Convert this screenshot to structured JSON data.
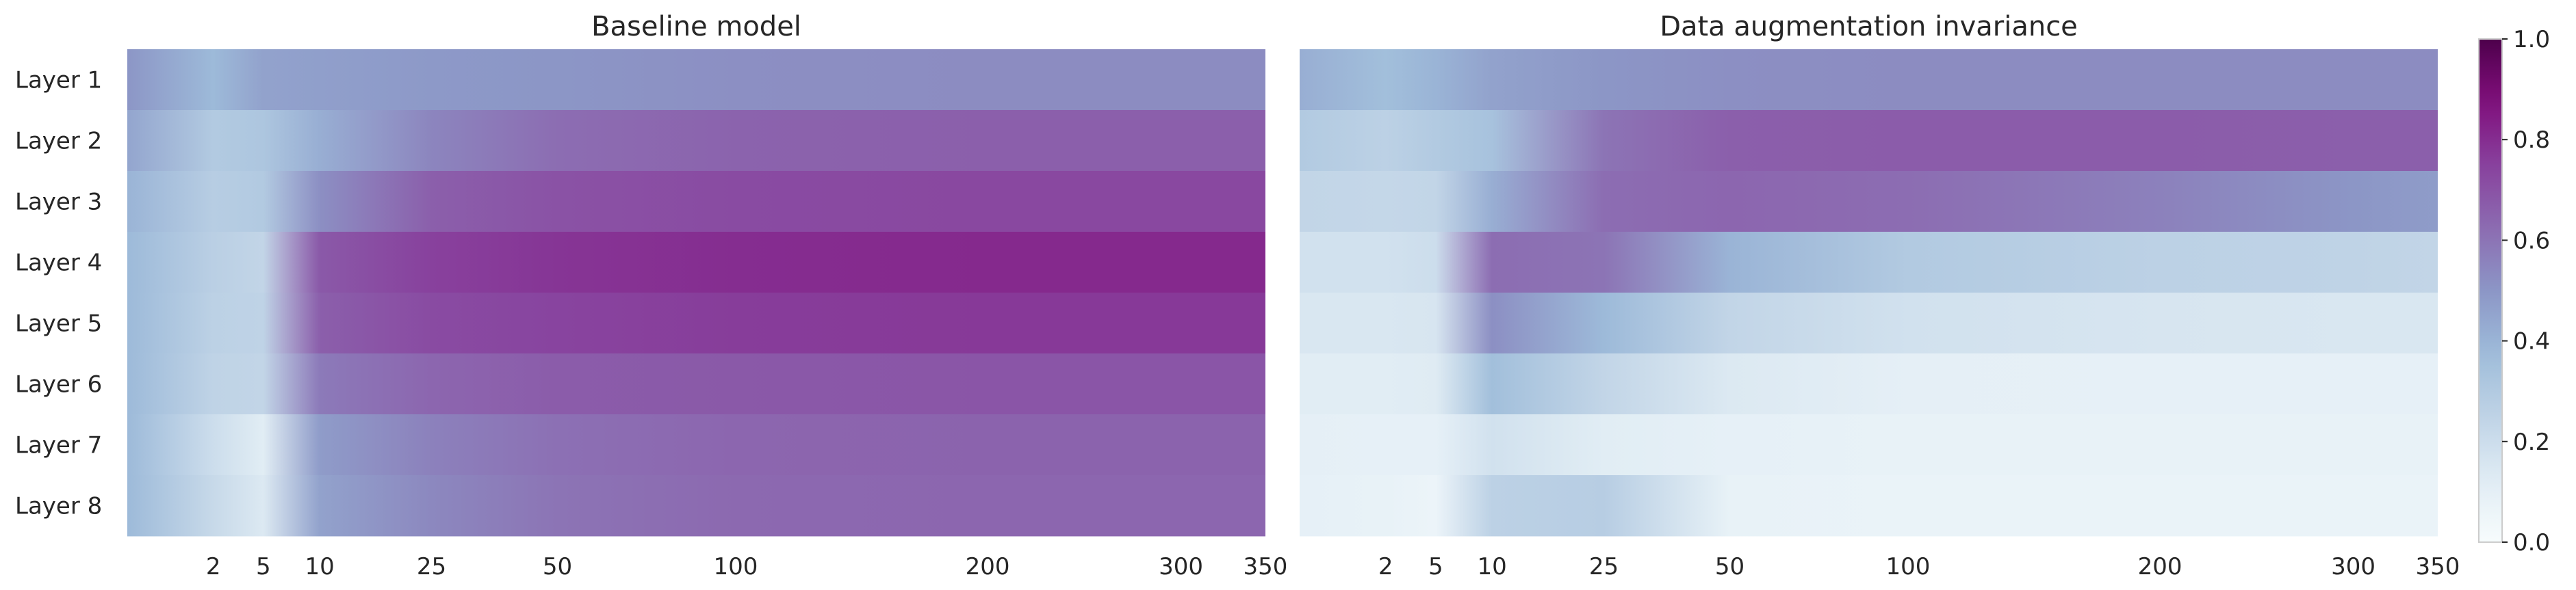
{
  "chart_data": {
    "type": "heatmap",
    "colormap": "BuPu",
    "colormap_stops": [
      "#f7fcfd",
      "#e0ecf4",
      "#bfd3e6",
      "#9ebcda",
      "#8c96c6",
      "#8c6bb1",
      "#88419d",
      "#810f7c",
      "#4d004b"
    ],
    "rows": [
      "Layer 1",
      "Layer 2",
      "Layer 3",
      "Layer 4",
      "Layer 5",
      "Layer 6",
      "Layer 7",
      "Layer 8"
    ],
    "x_scale": "sqrt",
    "x_range": [
      0,
      350
    ],
    "x_ticks": [
      2,
      5,
      10,
      25,
      50,
      100,
      200,
      300,
      350
    ],
    "panels": [
      {
        "title": "Baseline model",
        "series": [
          {
            "name": "Layer 1",
            "x": [
              0,
              2,
              5,
              10,
              25,
              50,
              100,
              200,
              300,
              350
            ],
            "values": [
              0.5,
              0.38,
              0.46,
              0.47,
              0.49,
              0.5,
              0.52,
              0.53,
              0.53,
              0.53
            ]
          },
          {
            "name": "Layer 2",
            "x": [
              0,
              2,
              5,
              10,
              25,
              50,
              100,
              200,
              300,
              350
            ],
            "values": [
              0.45,
              0.3,
              0.32,
              0.42,
              0.55,
              0.62,
              0.65,
              0.66,
              0.66,
              0.66
            ]
          },
          {
            "name": "Layer 3",
            "x": [
              0,
              2,
              5,
              10,
              25,
              50,
              100,
              200,
              300,
              350
            ],
            "values": [
              0.4,
              0.28,
              0.3,
              0.52,
              0.66,
              0.7,
              0.72,
              0.73,
              0.73,
              0.73
            ]
          },
          {
            "name": "Layer 4",
            "x": [
              0,
              2,
              5,
              10,
              25,
              50,
              100,
              200,
              300,
              350
            ],
            "values": [
              0.38,
              0.27,
              0.24,
              0.68,
              0.75,
              0.78,
              0.8,
              0.81,
              0.81,
              0.81
            ]
          },
          {
            "name": "Layer 5",
            "x": [
              0,
              2,
              5,
              10,
              25,
              50,
              100,
              200,
              300,
              350
            ],
            "values": [
              0.38,
              0.26,
              0.25,
              0.66,
              0.72,
              0.74,
              0.76,
              0.77,
              0.77,
              0.77
            ]
          },
          {
            "name": "Layer 6",
            "x": [
              0,
              2,
              5,
              10,
              25,
              50,
              100,
              200,
              300,
              350
            ],
            "values": [
              0.38,
              0.25,
              0.24,
              0.58,
              0.64,
              0.67,
              0.68,
              0.69,
              0.69,
              0.69
            ]
          },
          {
            "name": "Layer 7",
            "x": [
              0,
              2,
              5,
              10,
              25,
              50,
              100,
              200,
              300,
              350
            ],
            "values": [
              0.38,
              0.2,
              0.12,
              0.48,
              0.56,
              0.61,
              0.64,
              0.65,
              0.65,
              0.65
            ]
          },
          {
            "name": "Layer 8",
            "x": [
              0,
              2,
              5,
              10,
              25,
              50,
              100,
              200,
              300,
              350
            ],
            "values": [
              0.38,
              0.22,
              0.14,
              0.46,
              0.54,
              0.6,
              0.63,
              0.64,
              0.64,
              0.64
            ]
          }
        ]
      },
      {
        "title": "Data augmentation invariance",
        "series": [
          {
            "name": "Layer 1",
            "x": [
              0,
              2,
              5,
              10,
              25,
              50,
              100,
              200,
              300,
              350
            ],
            "values": [
              0.42,
              0.36,
              0.4,
              0.46,
              0.5,
              0.52,
              0.53,
              0.53,
              0.53,
              0.53
            ]
          },
          {
            "name": "Layer 2",
            "x": [
              0,
              2,
              5,
              10,
              25,
              50,
              100,
              200,
              300,
              350
            ],
            "values": [
              0.3,
              0.26,
              0.3,
              0.34,
              0.6,
              0.66,
              0.67,
              0.67,
              0.66,
              0.66
            ]
          },
          {
            "name": "Layer 3",
            "x": [
              0,
              2,
              5,
              10,
              25,
              50,
              100,
              200,
              300,
              350
            ],
            "values": [
              0.24,
              0.23,
              0.24,
              0.42,
              0.62,
              0.64,
              0.62,
              0.56,
              0.5,
              0.48
            ]
          },
          {
            "name": "Layer 4",
            "x": [
              0,
              2,
              5,
              10,
              25,
              50,
              100,
              200,
              300,
              350
            ],
            "values": [
              0.18,
              0.18,
              0.2,
              0.62,
              0.6,
              0.4,
              0.3,
              0.26,
              0.25,
              0.24
            ]
          },
          {
            "name": "Layer 5",
            "x": [
              0,
              2,
              5,
              10,
              25,
              50,
              100,
              200,
              300,
              350
            ],
            "values": [
              0.15,
              0.15,
              0.16,
              0.52,
              0.38,
              0.24,
              0.18,
              0.16,
              0.15,
              0.15
            ]
          },
          {
            "name": "Layer 6",
            "x": [
              0,
              2,
              5,
              10,
              25,
              50,
              100,
              200,
              300,
              350
            ],
            "values": [
              0.12,
              0.12,
              0.13,
              0.36,
              0.24,
              0.14,
              0.1,
              0.09,
              0.09,
              0.09
            ]
          },
          {
            "name": "Layer 7",
            "x": [
              0,
              2,
              5,
              10,
              25,
              50,
              100,
              200,
              300,
              350
            ],
            "values": [
              0.1,
              0.09,
              0.09,
              0.18,
              0.12,
              0.09,
              0.08,
              0.08,
              0.08,
              0.08
            ]
          },
          {
            "name": "Layer 8",
            "x": [
              0,
              2,
              5,
              10,
              25,
              50,
              100,
              200,
              300,
              350
            ],
            "values": [
              0.09,
              0.08,
              0.06,
              0.26,
              0.28,
              0.08,
              0.07,
              0.07,
              0.07,
              0.07
            ]
          }
        ]
      }
    ],
    "colorbar": {
      "range": [
        0.0,
        1.0
      ],
      "ticks": [
        "0.0",
        "0.2",
        "0.4",
        "0.6",
        "0.8",
        "1.0"
      ]
    }
  }
}
